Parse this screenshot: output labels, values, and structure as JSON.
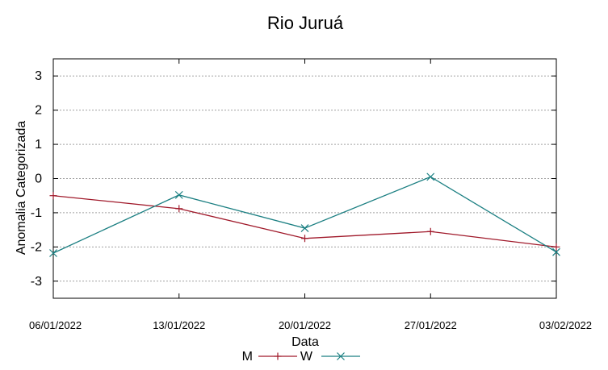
{
  "chart_data": {
    "type": "line",
    "title": "Rio Juruá",
    "xlabel": "Data",
    "ylabel": "Anomalia Categorizada",
    "x": [
      "06/01/2022",
      "13/01/2022",
      "20/01/2022",
      "27/01/2022",
      "03/02/2022"
    ],
    "yticks": [
      "3",
      "2",
      "1",
      "0",
      "-1",
      "-2",
      "-3"
    ],
    "ylim": [
      -3.5,
      3.5
    ],
    "grid": true,
    "legend_position": "bottom",
    "series": [
      {
        "name": "M",
        "color": "#a0192a",
        "marker": "plus",
        "values": [
          -0.5,
          -0.88,
          -1.75,
          -1.55,
          -2.0
        ]
      },
      {
        "name": "W",
        "color": "#1b7f82",
        "marker": "cross",
        "values": [
          -2.18,
          -0.48,
          -1.45,
          0.05,
          -2.15
        ]
      }
    ]
  }
}
